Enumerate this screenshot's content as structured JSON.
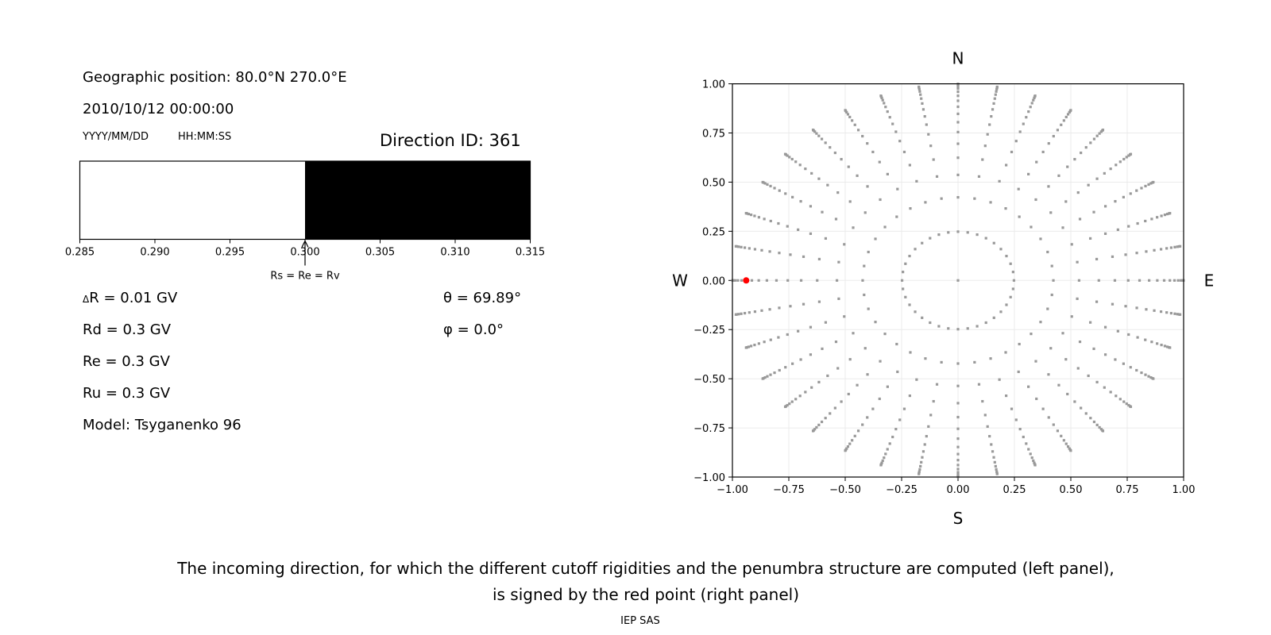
{
  "left_panel": {
    "geo_position": "Geographic position: 80.0°N 270.0°E",
    "datetime": "2010/10/12 00:00:00",
    "date_format": "YYYY/MM/DD",
    "time_format": "HH:MM:SS",
    "direction_id": "Direction ID: 361",
    "delta_r": "R = 0.01 GV",
    "delta_symbol": "Δ",
    "rd": "Rd = 0.3 GV",
    "re": "Re = 0.3 GV",
    "ru": "Ru = 0.3 GV",
    "model": "Model: Tsyganenko 96",
    "theta": "θ = 69.89°",
    "phi": "φ = 0.0°",
    "arrow_label": "Rs = Re = Rv"
  },
  "caption": {
    "line1": "The incoming direction, for which the different cutoff rigidities and the penumbra structure are computed (left panel),",
    "line2": "is signed by the red point (right panel)",
    "credit": "IEP SAS"
  },
  "chart_data": [
    {
      "type": "bar",
      "description_kind": "penumbra strip",
      "xlim": [
        0.285,
        0.315
      ],
      "xticks": [
        "0.285",
        "0.290",
        "0.295",
        "0.300",
        "0.305",
        "0.310",
        "0.315"
      ],
      "segments": [
        {
          "from": 0.285,
          "to": 0.3,
          "color": "#ffffff"
        },
        {
          "from": 0.3,
          "to": 0.315,
          "color": "#000000"
        }
      ],
      "marker_value": 0.3,
      "marker_label": "Rs = Re = Rv"
    },
    {
      "type": "scatter",
      "xlim": [
        -1.0,
        1.0
      ],
      "ylim": [
        -1.0,
        1.0
      ],
      "grid": true,
      "xticks": [
        "−1.00",
        "−0.75",
        "−0.50",
        "−0.25",
        "0.00",
        "0.25",
        "0.50",
        "0.75",
        "1.00"
      ],
      "yticks": [
        "−1.00",
        "−0.75",
        "−0.50",
        "−0.25",
        "0.00",
        "0.25",
        "0.50",
        "0.75",
        "1.00"
      ],
      "compass": {
        "top": "N",
        "bottom": "S",
        "left": "W",
        "right": "E"
      },
      "center_point": [
        0,
        0
      ],
      "ring_radii": [
        0.248,
        0.4227,
        0.5367,
        0.6242,
        0.6953,
        0.7545,
        0.8047,
        0.8472,
        0.8833,
        0.9138,
        0.9391,
        0.9596,
        0.9758,
        0.9877,
        0.9956,
        0.9995
      ],
      "azimuth_step_deg": 10,
      "point_color": "#999999",
      "highlight": {
        "x": -0.939,
        "y": 0.0,
        "color": "#ff0000"
      }
    }
  ]
}
